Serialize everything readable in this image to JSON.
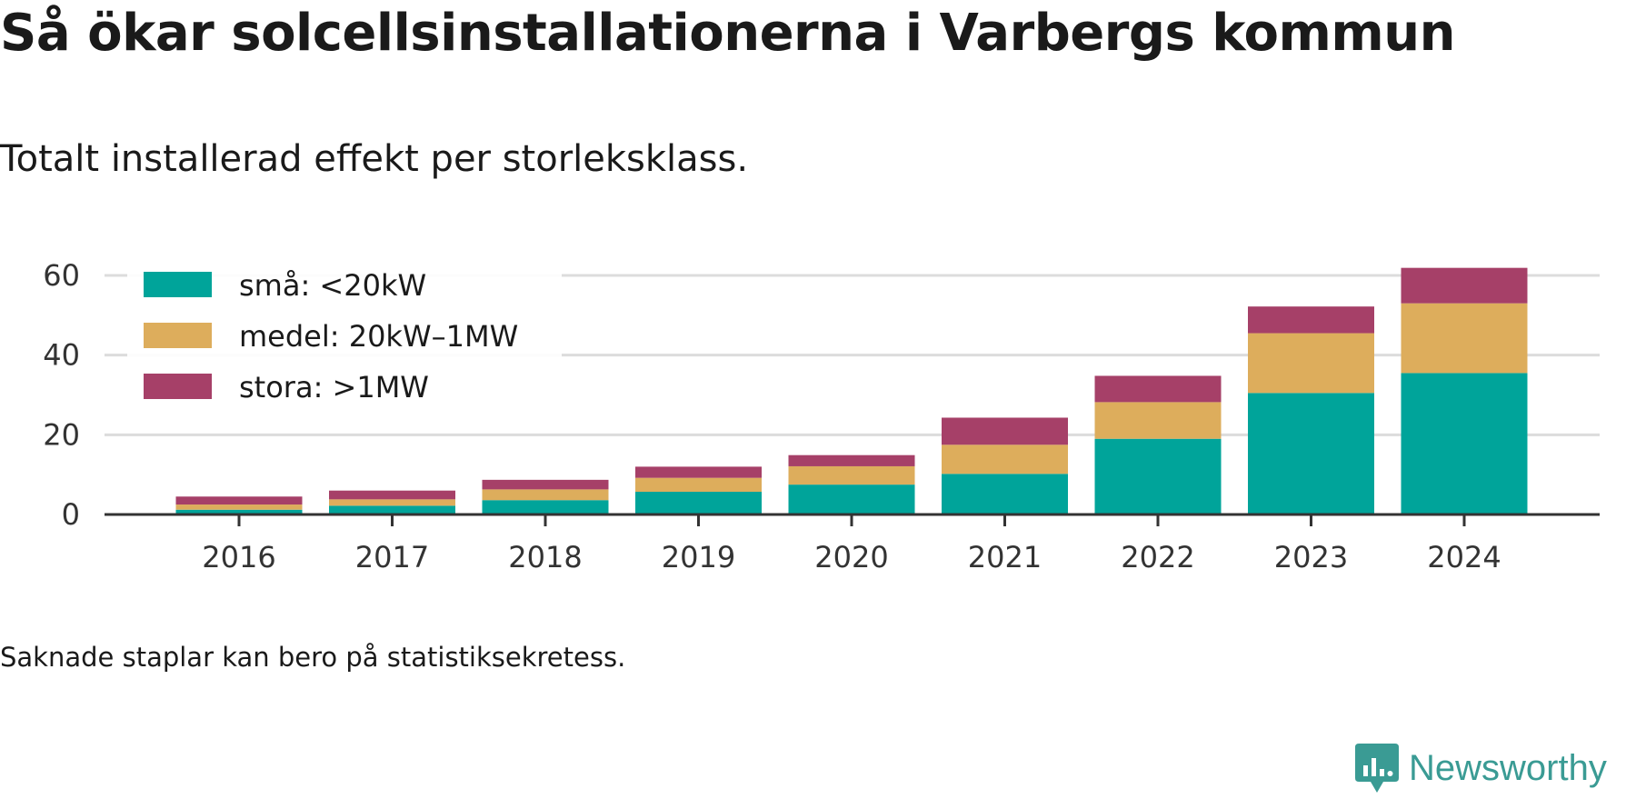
{
  "header": {
    "title": "Så ökar solcellsinstallationerna i Varbergs kommun",
    "subtitle": "Totalt installerad effekt per storleksklass."
  },
  "footer": {
    "note": "Saknade staplar kan bero på statistiksekretess.",
    "brand": "Newsworthy",
    "brand_color": "#3a9b94"
  },
  "chart_data": {
    "type": "bar",
    "stacked": true,
    "categories": [
      "2016",
      "2017",
      "2018",
      "2019",
      "2020",
      "2021",
      "2022",
      "2023",
      "2024"
    ],
    "series": [
      {
        "name": "små: <20kW",
        "color": "#00a49a",
        "values": [
          1.2,
          2.2,
          3.6,
          5.7,
          7.5,
          10.2,
          19.0,
          30.5,
          35.5
        ]
      },
      {
        "name": "medel: 20kW–1MW",
        "color": "#ddad5c",
        "values": [
          1.3,
          1.6,
          2.7,
          3.5,
          4.6,
          7.3,
          9.2,
          15.0,
          17.5
        ]
      },
      {
        "name": "stora: >1MW",
        "color": "#a64068",
        "values": [
          2.0,
          2.2,
          2.4,
          2.8,
          2.8,
          6.8,
          6.6,
          6.7,
          8.9
        ]
      }
    ],
    "ylim": [
      0,
      62
    ],
    "yticks": [
      "0",
      "20",
      "40",
      "60"
    ],
    "ytick_values": [
      0,
      20,
      40,
      60
    ],
    "grid": true,
    "legend_position": "top-left",
    "xlabel": "",
    "ylabel": ""
  }
}
